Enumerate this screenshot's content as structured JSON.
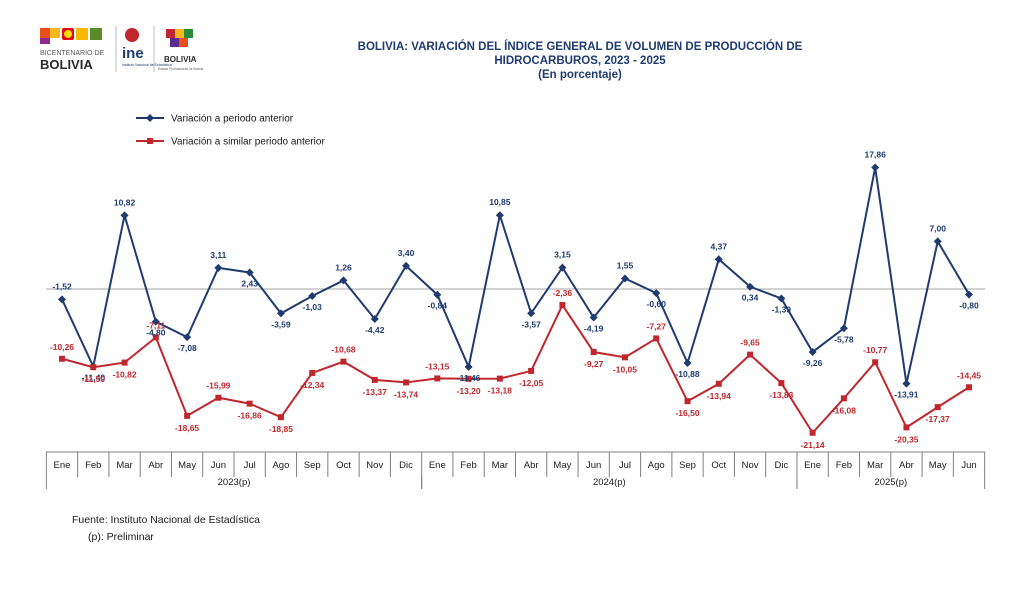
{
  "logos": {
    "bicentenario_line1": "BICENTENARIO DE",
    "bicentenario_line2": "BOLIVIA",
    "ine": "ine",
    "ine_sub": "Instituto Nacional de Estadística",
    "estado": "BOLIVIA",
    "estado_sub": "Estado Plurinacional de Bolivia"
  },
  "title": {
    "line1": "BOLIVIA: VARIACIÓN DEL ÍNDICE GENERAL DE VOLUMEN DE PRODUCCIÓN DE",
    "line2": "HIDROCARBUROS, 2023 - 2025",
    "line3": "(En porcentaje)"
  },
  "footer": {
    "source": "Fuente: Instituto Nacional de Estadística",
    "note": "(p): Preliminar"
  },
  "colors": {
    "blue": "#1f3b6f",
    "red": "#c0272d",
    "zero_line": "#a6a6a6"
  },
  "chart_data": {
    "type": "line",
    "categories": [
      "Ene",
      "Feb",
      "Mar",
      "Abr",
      "May",
      "Jun",
      "Jul",
      "Ago",
      "Sep",
      "Oct",
      "Nov",
      "Dic",
      "Ene",
      "Feb",
      "Mar",
      "Abr",
      "May",
      "Jun",
      "Jul",
      "Ago",
      "Sep",
      "Oct",
      "Nov",
      "Dic",
      "Ene",
      "Feb",
      "Mar",
      "Abr",
      "May",
      "Jun"
    ],
    "groups": [
      {
        "label": "2023(p)",
        "start": 0,
        "end": 11
      },
      {
        "label": "2024(p)",
        "start": 12,
        "end": 23
      },
      {
        "label": "2025(p)",
        "start": 24,
        "end": 29
      }
    ],
    "series": [
      {
        "name": "Variación a periodo anterior",
        "color": "#1f3b6f",
        "marker": "diamond",
        "values": [
          -1.52,
          -11.4,
          10.82,
          -4.8,
          -7.08,
          3.11,
          2.43,
          -3.59,
          -1.03,
          1.26,
          -4.42,
          3.4,
          -0.84,
          -11.46,
          10.85,
          -3.57,
          3.15,
          -4.19,
          1.55,
          -0.6,
          -10.88,
          4.37,
          0.34,
          -1.39,
          -9.26,
          -5.78,
          17.86,
          -13.91,
          7.0,
          -0.8
        ],
        "labels": [
          "-1,52",
          "-11,40",
          "10,82",
          "-4,80",
          "-7,08",
          "3,11",
          "2,43",
          "-3,59",
          "-1,03",
          "1,26",
          "-4,42",
          "3,40",
          "-0,84",
          "-11,46",
          "10,85",
          "-3,57",
          "3,15",
          "-4,19",
          "1,55",
          "-0,60",
          "-10,88",
          "4,37",
          "0,34",
          "-1,39",
          "-9,26",
          "-5,78",
          "17,86",
          "-13,91",
          "7,00",
          "-0,80"
        ]
      },
      {
        "name": "Variación a similar periodo anterior",
        "color": "#c0272d",
        "marker": "square",
        "values": [
          -10.26,
          -11.5,
          -10.82,
          -7.11,
          -18.65,
          -15.99,
          -16.86,
          -18.85,
          -12.34,
          -10.68,
          -13.37,
          -13.74,
          -13.15,
          -13.2,
          -13.18,
          -12.05,
          -2.36,
          -9.27,
          -10.05,
          -7.27,
          -16.5,
          -13.94,
          -9.65,
          -13.83,
          -21.14,
          -16.08,
          -10.77,
          -20.35,
          -17.37,
          -14.45
        ],
        "labels": [
          "-10,26",
          "-11,50",
          "-10,82",
          "-7,11",
          "-18,65",
          "-15,99",
          "-16,86",
          "-18,85",
          "-12,34",
          "-10,68",
          "-13,37",
          "-13,74",
          "-13,15",
          "-13,20",
          "-13,18",
          "-12,05",
          "-2,36",
          "-9,27",
          "-10,05",
          "-7,27",
          "-16,50",
          "-13,94",
          "-9,65",
          "-13,83",
          "-21,14",
          "-16,08",
          "-10,77",
          "-20,35",
          "-17,37",
          "-14,45"
        ]
      }
    ],
    "title": "BOLIVIA: VARIACIÓN DEL ÍNDICE GENERAL DE VOLUMEN DE PRODUCCIÓN DE HIDROCARBUROS, 2023 - 2025",
    "ylim": [
      -22,
      19
    ],
    "legend": "top-left",
    "grid": false
  }
}
